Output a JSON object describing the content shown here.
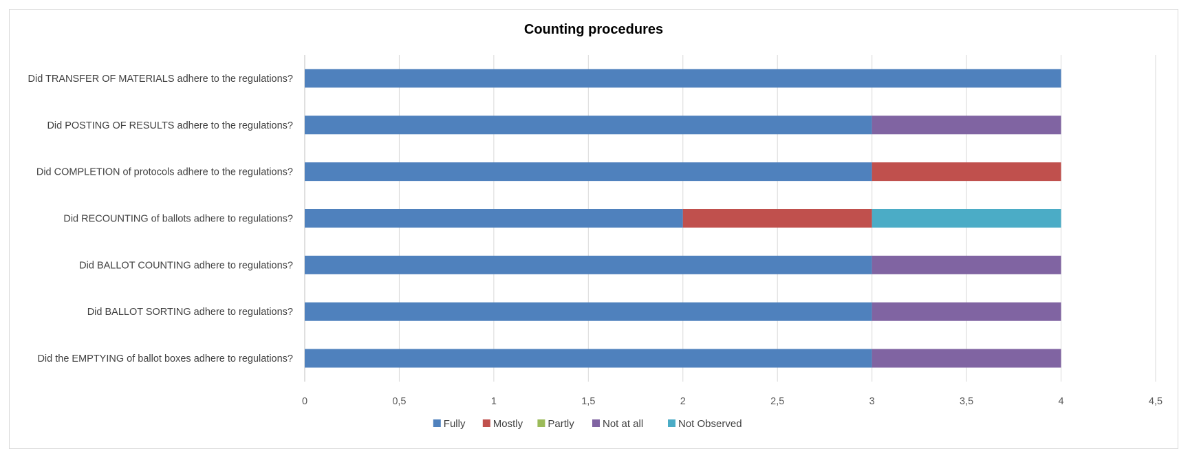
{
  "chart_data": {
    "type": "bar",
    "orientation": "horizontal",
    "stacked": true,
    "title": "Counting procedures",
    "categories": [
      "Did TRANSFER OF MATERIALS adhere to the regulations?",
      "Did POSTING OF RESULTS adhere to the regulations?",
      "Did COMPLETION of protocols adhere to the regulations?",
      "Did RECOUNTING of ballots adhere to regulations?",
      "Did BALLOT COUNTING adhere to regulations?",
      "Did BALLOT SORTING adhere to regulations?",
      "Did the EMPTYING of ballot boxes adhere to regulations?"
    ],
    "series": [
      {
        "name": "Fully",
        "color": "#4F81BD",
        "values": [
          4,
          3,
          3,
          2,
          3,
          3,
          3
        ]
      },
      {
        "name": "Mostly",
        "color": "#C0504D",
        "values": [
          0,
          0,
          1,
          1,
          0,
          0,
          0
        ]
      },
      {
        "name": "Partly",
        "color": "#9BBB59",
        "values": [
          0,
          0,
          0,
          0,
          0,
          0,
          0
        ]
      },
      {
        "name": "Not at all",
        "color": "#8064A2",
        "values": [
          0,
          1,
          0,
          0,
          1,
          1,
          1
        ]
      },
      {
        "name": "Not Observed",
        "color": "#4BACC6",
        "values": [
          0,
          0,
          0,
          1,
          0,
          0,
          0
        ]
      }
    ],
    "xlim": [
      0,
      4.5
    ],
    "xticks": [
      0,
      0.5,
      1,
      1.5,
      2,
      2.5,
      3,
      3.5,
      4,
      4.5
    ],
    "xtick_labels": [
      "0",
      "0,5",
      "1",
      "1,5",
      "2",
      "2,5",
      "3",
      "3,5",
      "4",
      "4,5"
    ],
    "grid": true,
    "legend_position": "bottom"
  }
}
